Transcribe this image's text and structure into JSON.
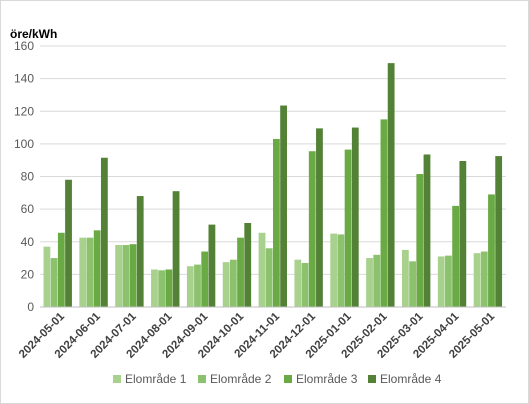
{
  "chart_data": {
    "type": "bar",
    "title": "",
    "ylabel": "öre/kWh",
    "xlabel": "",
    "ylim": [
      0,
      160
    ],
    "ytick_step": 20,
    "grid": true,
    "legend_position": "bottom",
    "categories": [
      "2024-05-01",
      "2024-06-01",
      "2024-07-01",
      "2024-08-01",
      "2024-09-01",
      "2024-10-01",
      "2024-11-01",
      "2024-12-01",
      "2025-01-01",
      "2025-02-01",
      "2025-03-01",
      "2025-04-01",
      "2025-05-01"
    ],
    "series": [
      {
        "name": "Elområde 1",
        "color": "#a9d18e",
        "values": [
          37,
          42.5,
          38,
          23,
          25,
          27.5,
          45.5,
          29,
          45,
          30,
          35,
          31,
          33
        ]
      },
      {
        "name": "Elområde 2",
        "color": "#8cc26e",
        "values": [
          30,
          42.5,
          38,
          22.5,
          26,
          29,
          36,
          27,
          44.5,
          32,
          28,
          31.5,
          34
        ]
      },
      {
        "name": "Elområde 3",
        "color": "#6aaa45",
        "values": [
          45.5,
          47,
          38.5,
          23,
          34,
          42.5,
          103,
          95.5,
          96.5,
          115,
          81.5,
          62,
          69
        ]
      },
      {
        "name": "Elområde 4",
        "color": "#538135",
        "values": [
          78,
          91.5,
          68,
          71,
          50.5,
          51.5,
          123.5,
          109.5,
          110,
          149.5,
          93.5,
          89.5,
          92.5
        ]
      }
    ]
  }
}
